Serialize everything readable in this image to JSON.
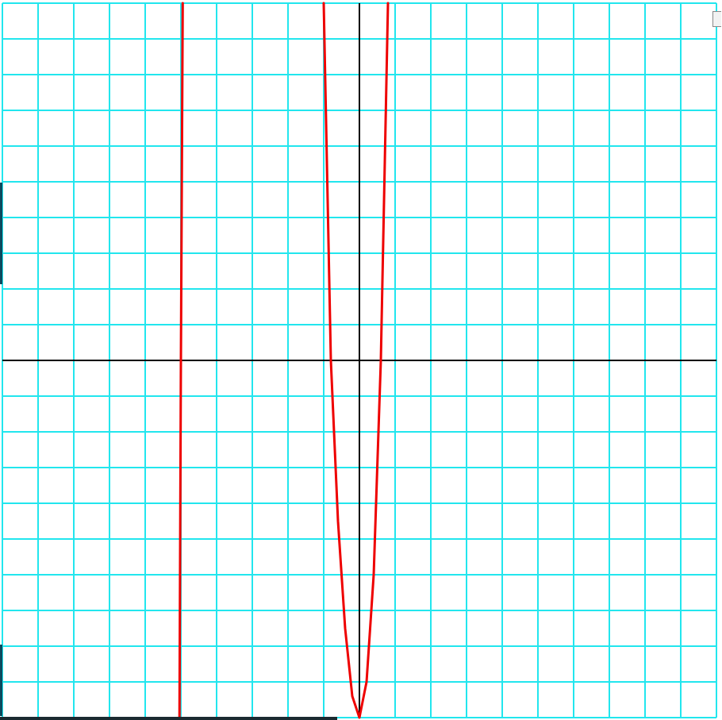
{
  "chart_data": {
    "type": "line",
    "title": "",
    "xlabel": "",
    "ylabel": "",
    "grid": true,
    "xlim": [
      -10,
      10
    ],
    "ylim": [
      -10,
      10
    ],
    "grid_step": 1,
    "colors": {
      "grid": "#22e6ee",
      "axes": "#000000",
      "curve": "#ee0000",
      "background": "#ffffff"
    },
    "series": [
      {
        "x": [
          -5.04,
          -5.0,
          -4.95,
          -1.0,
          -0.8,
          -0.6,
          -0.4,
          -0.2,
          0.0,
          0.2,
          0.4,
          0.6,
          0.8
        ],
        "y": [
          -10.0,
          0.0,
          10.0,
          10.0,
          0.0,
          -4.5,
          -7.5,
          -9.4,
          -10.0,
          -9.0,
          -6.0,
          0.0,
          10.0
        ]
      }
    ]
  }
}
